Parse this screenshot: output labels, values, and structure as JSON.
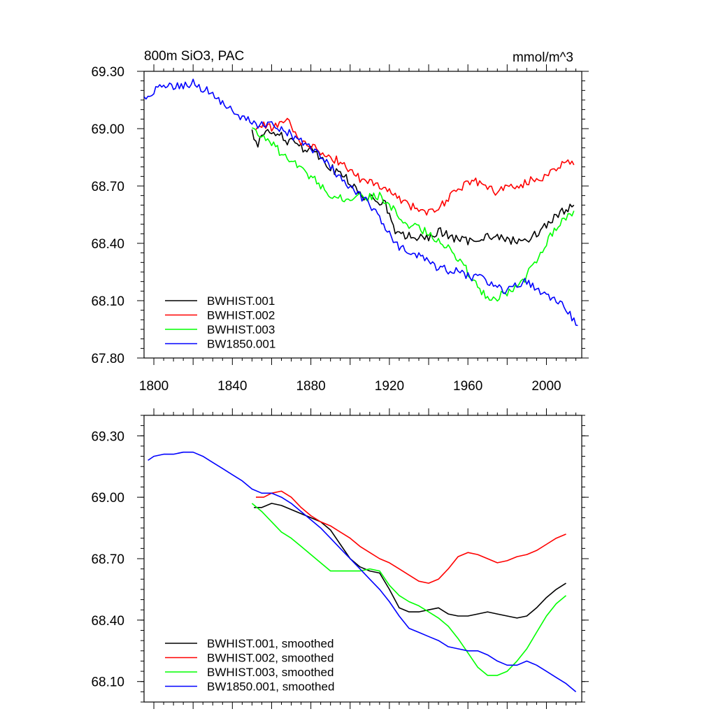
{
  "chart_data": [
    {
      "type": "line",
      "title_left": "800m SiO3, PAC",
      "title_right": "mmol/m^3",
      "xlabel": "",
      "ylabel": "",
      "xlim": [
        1795,
        2018
      ],
      "ylim": [
        67.8,
        69.3
      ],
      "x_ticks": [
        "1800",
        "1840",
        "1880",
        "1920",
        "1960",
        "2000"
      ],
      "y_ticks": [
        "69.30",
        "69.00",
        "68.70",
        "68.40",
        "68.10",
        "67.80"
      ],
      "legend_position": "bottom-left",
      "series": [
        {
          "name": "BWHIST.001",
          "color": "#000000",
          "x": [
            1850,
            1853,
            1856,
            1859,
            1862,
            1865,
            1868,
            1872,
            1876,
            1880,
            1884,
            1888,
            1892,
            1896,
            1900,
            1904,
            1908,
            1912,
            1916,
            1918,
            1920,
            1922,
            1925,
            1930,
            1935,
            1940,
            1945,
            1950,
            1955,
            1960,
            1965,
            1970,
            1975,
            1980,
            1985,
            1990,
            1995,
            2000,
            2005,
            2010,
            2014
          ],
          "y": [
            68.98,
            68.92,
            68.96,
            69.0,
            68.95,
            68.97,
            68.92,
            68.94,
            68.9,
            68.9,
            68.86,
            68.82,
            68.78,
            68.76,
            68.72,
            68.66,
            68.64,
            68.63,
            68.62,
            68.6,
            68.55,
            68.48,
            68.44,
            68.44,
            68.43,
            68.42,
            68.47,
            68.44,
            68.42,
            68.41,
            68.43,
            68.44,
            68.43,
            68.42,
            68.41,
            68.42,
            68.45,
            68.5,
            68.54,
            68.58,
            68.6
          ]
        },
        {
          "name": "BWHIST.002",
          "color": "#ff0000",
          "x": [
            1852,
            1856,
            1860,
            1864,
            1868,
            1872,
            1876,
            1880,
            1884,
            1888,
            1892,
            1896,
            1900,
            1905,
            1910,
            1915,
            1920,
            1925,
            1930,
            1935,
            1940,
            1945,
            1950,
            1955,
            1960,
            1965,
            1970,
            1975,
            1980,
            1985,
            1990,
            1995,
            2000,
            2005,
            2010,
            2014
          ],
          "y": [
            69.0,
            69.02,
            69.0,
            69.03,
            69.05,
            68.98,
            68.92,
            68.91,
            68.89,
            68.86,
            68.84,
            68.82,
            68.78,
            68.74,
            68.72,
            68.7,
            68.67,
            68.64,
            68.6,
            68.58,
            68.56,
            68.59,
            68.63,
            68.68,
            68.73,
            68.72,
            68.69,
            68.67,
            68.7,
            68.69,
            68.72,
            68.74,
            68.75,
            68.8,
            68.83,
            68.81
          ]
        },
        {
          "name": "BWHIST.003",
          "color": "#00ff00",
          "x": [
            1850,
            1855,
            1860,
            1865,
            1870,
            1875,
            1880,
            1885,
            1890,
            1895,
            1900,
            1905,
            1910,
            1915,
            1920,
            1925,
            1930,
            1935,
            1940,
            1945,
            1950,
            1955,
            1960,
            1965,
            1970,
            1975,
            1980,
            1985,
            1990,
            1995,
            2000,
            2005,
            2010,
            2014
          ],
          "y": [
            69.0,
            68.97,
            68.92,
            68.87,
            68.83,
            68.79,
            68.75,
            68.7,
            68.66,
            68.64,
            68.63,
            68.64,
            68.64,
            68.65,
            68.6,
            68.54,
            68.5,
            68.48,
            68.45,
            68.42,
            68.38,
            68.32,
            68.25,
            68.17,
            68.12,
            68.12,
            68.14,
            68.17,
            68.23,
            68.32,
            68.41,
            68.48,
            68.53,
            68.57
          ]
        },
        {
          "name": "BW1850.001",
          "color": "#0000ff",
          "x": [
            1795,
            1800,
            1805,
            1810,
            1815,
            1820,
            1825,
            1830,
            1835,
            1840,
            1845,
            1850,
            1855,
            1860,
            1865,
            1870,
            1875,
            1880,
            1885,
            1890,
            1895,
            1900,
            1905,
            1910,
            1915,
            1920,
            1925,
            1930,
            1935,
            1940,
            1945,
            1950,
            1955,
            1960,
            1965,
            1970,
            1975,
            1980,
            1985,
            1990,
            1995,
            2000,
            2005,
            2010,
            2016
          ],
          "y": [
            69.15,
            69.2,
            69.22,
            69.22,
            69.22,
            69.24,
            69.21,
            69.18,
            69.14,
            69.1,
            69.06,
            69.03,
            69.02,
            69.02,
            69.0,
            68.97,
            68.93,
            68.89,
            68.85,
            68.8,
            68.74,
            68.69,
            68.65,
            68.6,
            68.53,
            68.45,
            68.38,
            68.35,
            68.33,
            68.3,
            68.27,
            68.26,
            68.25,
            68.23,
            68.22,
            68.2,
            68.17,
            68.15,
            68.18,
            68.2,
            68.17,
            68.13,
            68.1,
            68.06,
            67.97
          ]
        }
      ]
    },
    {
      "type": "line",
      "title_left": "",
      "title_right": "",
      "xlabel": "",
      "ylabel": "",
      "xlim": [
        1795,
        2018
      ],
      "ylim": [
        68.0,
        69.4
      ],
      "x_ticks": [],
      "y_ticks": [
        "69.30",
        "69.00",
        "68.70",
        "68.40",
        "68.10"
      ],
      "legend_position": "bottom-left",
      "series": [
        {
          "name": "BWHIST.001, smoothed",
          "color": "#000000",
          "x": [
            1851,
            1855,
            1860,
            1865,
            1870,
            1875,
            1880,
            1885,
            1890,
            1895,
            1900,
            1905,
            1910,
            1915,
            1920,
            1925,
            1930,
            1935,
            1940,
            1945,
            1950,
            1955,
            1960,
            1965,
            1970,
            1975,
            1980,
            1985,
            1990,
            1995,
            2000,
            2005,
            2010
          ],
          "y": [
            68.95,
            68.95,
            68.97,
            68.96,
            68.94,
            68.92,
            68.9,
            68.88,
            68.84,
            68.77,
            68.7,
            68.66,
            68.64,
            68.63,
            68.55,
            68.46,
            68.44,
            68.44,
            68.45,
            68.46,
            68.43,
            68.42,
            68.42,
            68.43,
            68.44,
            68.43,
            68.42,
            68.41,
            68.42,
            68.46,
            68.51,
            68.55,
            68.58
          ]
        },
        {
          "name": "BWHIST.002, smoothed",
          "color": "#ff0000",
          "x": [
            1852,
            1856,
            1860,
            1865,
            1870,
            1875,
            1880,
            1885,
            1890,
            1895,
            1900,
            1905,
            1910,
            1915,
            1920,
            1925,
            1930,
            1935,
            1940,
            1945,
            1950,
            1955,
            1960,
            1965,
            1970,
            1975,
            1980,
            1985,
            1990,
            1995,
            2000,
            2005,
            2010
          ],
          "y": [
            69.0,
            69.0,
            69.02,
            69.03,
            69.0,
            68.95,
            68.91,
            68.88,
            68.86,
            68.83,
            68.8,
            68.76,
            68.73,
            68.7,
            68.68,
            68.65,
            68.62,
            68.59,
            68.58,
            68.6,
            68.65,
            68.71,
            68.73,
            68.72,
            68.7,
            68.68,
            68.69,
            68.71,
            68.72,
            68.74,
            68.77,
            68.8,
            68.82
          ]
        },
        {
          "name": "BWHIST.003, smoothed",
          "color": "#00ff00",
          "x": [
            1850,
            1855,
            1860,
            1865,
            1870,
            1875,
            1880,
            1885,
            1890,
            1895,
            1900,
            1905,
            1910,
            1915,
            1920,
            1925,
            1930,
            1935,
            1940,
            1945,
            1950,
            1955,
            1960,
            1965,
            1970,
            1975,
            1980,
            1985,
            1990,
            1995,
            2000,
            2005,
            2010
          ],
          "y": [
            68.97,
            68.93,
            68.88,
            68.83,
            68.8,
            68.76,
            68.72,
            68.68,
            68.64,
            68.64,
            68.64,
            68.64,
            68.65,
            68.64,
            68.57,
            68.52,
            68.49,
            68.47,
            68.44,
            68.41,
            68.37,
            68.31,
            68.24,
            68.17,
            68.13,
            68.13,
            68.15,
            68.2,
            68.26,
            68.34,
            68.42,
            68.48,
            68.52
          ]
        },
        {
          "name": "BW1850.001, smoothed",
          "color": "#0000ff",
          "x": [
            1797,
            1800,
            1805,
            1810,
            1815,
            1820,
            1825,
            1830,
            1835,
            1840,
            1845,
            1850,
            1855,
            1860,
            1865,
            1870,
            1875,
            1880,
            1885,
            1890,
            1895,
            1900,
            1905,
            1910,
            1915,
            1920,
            1925,
            1930,
            1935,
            1940,
            1945,
            1950,
            1955,
            1960,
            1965,
            1970,
            1975,
            1980,
            1985,
            1990,
            1995,
            2000,
            2005,
            2010,
            2015
          ],
          "y": [
            69.18,
            69.2,
            69.21,
            69.21,
            69.22,
            69.22,
            69.2,
            69.17,
            69.14,
            69.11,
            69.08,
            69.04,
            69.02,
            69.02,
            69.0,
            68.97,
            68.93,
            68.89,
            68.85,
            68.8,
            68.75,
            68.7,
            68.65,
            68.6,
            68.55,
            68.49,
            68.42,
            68.36,
            68.34,
            68.32,
            68.3,
            68.27,
            68.26,
            68.25,
            68.25,
            68.23,
            68.2,
            68.18,
            68.18,
            68.2,
            68.18,
            68.15,
            68.12,
            68.09,
            68.05
          ]
        }
      ]
    }
  ]
}
